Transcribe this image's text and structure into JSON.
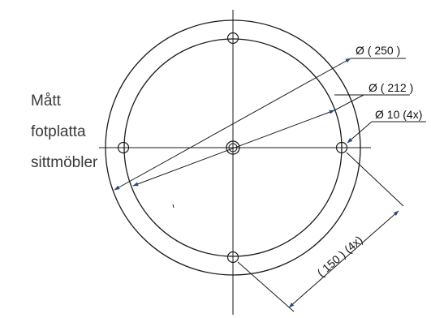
{
  "caption": {
    "line1": "Mått",
    "line2": "fotplatta",
    "line3": "sittmöbler"
  },
  "dimensions": {
    "outer_diameter": "Ø ( 250 )",
    "inner_diameter": "Ø ( 212 )",
    "hole_diameter": "Ø 10 (4x)",
    "hole_spacing": "( 150 ) (4x)"
  },
  "colors": {
    "line": "#1a1a1a",
    "arrow": "#2c4a7a",
    "caption": "#3a3a3a"
  }
}
